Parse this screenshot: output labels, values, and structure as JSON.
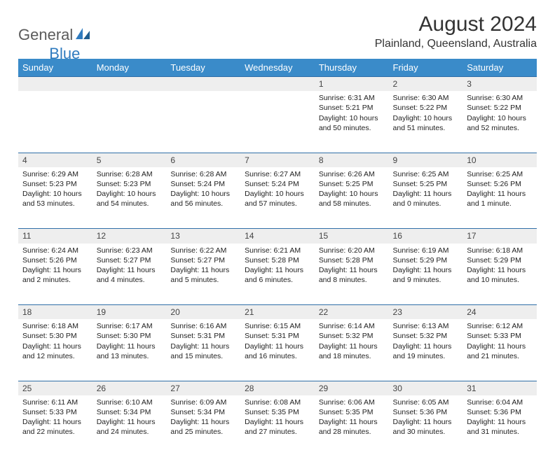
{
  "logo": {
    "part1": "General",
    "part2": "Blue"
  },
  "title": "August 2024",
  "location": "Plainland, Queensland, Australia",
  "colors": {
    "header_bg": "#3a8bc9",
    "header_text": "#ffffff",
    "daynum_bg": "#eeeeee",
    "row_border": "#2f6fa8",
    "logo_gray": "#5b5b5b",
    "logo_blue": "#2f7bbf"
  },
  "weekdays": [
    "Sunday",
    "Monday",
    "Tuesday",
    "Wednesday",
    "Thursday",
    "Friday",
    "Saturday"
  ],
  "weeks": [
    {
      "nums": [
        "",
        "",
        "",
        "",
        "1",
        "2",
        "3"
      ],
      "cells": [
        null,
        null,
        null,
        null,
        {
          "sunrise": "Sunrise: 6:31 AM",
          "sunset": "Sunset: 5:21 PM",
          "day1": "Daylight: 10 hours",
          "day2": "and 50 minutes."
        },
        {
          "sunrise": "Sunrise: 6:30 AM",
          "sunset": "Sunset: 5:22 PM",
          "day1": "Daylight: 10 hours",
          "day2": "and 51 minutes."
        },
        {
          "sunrise": "Sunrise: 6:30 AM",
          "sunset": "Sunset: 5:22 PM",
          "day1": "Daylight: 10 hours",
          "day2": "and 52 minutes."
        }
      ]
    },
    {
      "nums": [
        "4",
        "5",
        "6",
        "7",
        "8",
        "9",
        "10"
      ],
      "cells": [
        {
          "sunrise": "Sunrise: 6:29 AM",
          "sunset": "Sunset: 5:23 PM",
          "day1": "Daylight: 10 hours",
          "day2": "and 53 minutes."
        },
        {
          "sunrise": "Sunrise: 6:28 AM",
          "sunset": "Sunset: 5:23 PM",
          "day1": "Daylight: 10 hours",
          "day2": "and 54 minutes."
        },
        {
          "sunrise": "Sunrise: 6:28 AM",
          "sunset": "Sunset: 5:24 PM",
          "day1": "Daylight: 10 hours",
          "day2": "and 56 minutes."
        },
        {
          "sunrise": "Sunrise: 6:27 AM",
          "sunset": "Sunset: 5:24 PM",
          "day1": "Daylight: 10 hours",
          "day2": "and 57 minutes."
        },
        {
          "sunrise": "Sunrise: 6:26 AM",
          "sunset": "Sunset: 5:25 PM",
          "day1": "Daylight: 10 hours",
          "day2": "and 58 minutes."
        },
        {
          "sunrise": "Sunrise: 6:25 AM",
          "sunset": "Sunset: 5:25 PM",
          "day1": "Daylight: 11 hours",
          "day2": "and 0 minutes."
        },
        {
          "sunrise": "Sunrise: 6:25 AM",
          "sunset": "Sunset: 5:26 PM",
          "day1": "Daylight: 11 hours",
          "day2": "and 1 minute."
        }
      ]
    },
    {
      "nums": [
        "11",
        "12",
        "13",
        "14",
        "15",
        "16",
        "17"
      ],
      "cells": [
        {
          "sunrise": "Sunrise: 6:24 AM",
          "sunset": "Sunset: 5:26 PM",
          "day1": "Daylight: 11 hours",
          "day2": "and 2 minutes."
        },
        {
          "sunrise": "Sunrise: 6:23 AM",
          "sunset": "Sunset: 5:27 PM",
          "day1": "Daylight: 11 hours",
          "day2": "and 4 minutes."
        },
        {
          "sunrise": "Sunrise: 6:22 AM",
          "sunset": "Sunset: 5:27 PM",
          "day1": "Daylight: 11 hours",
          "day2": "and 5 minutes."
        },
        {
          "sunrise": "Sunrise: 6:21 AM",
          "sunset": "Sunset: 5:28 PM",
          "day1": "Daylight: 11 hours",
          "day2": "and 6 minutes."
        },
        {
          "sunrise": "Sunrise: 6:20 AM",
          "sunset": "Sunset: 5:28 PM",
          "day1": "Daylight: 11 hours",
          "day2": "and 8 minutes."
        },
        {
          "sunrise": "Sunrise: 6:19 AM",
          "sunset": "Sunset: 5:29 PM",
          "day1": "Daylight: 11 hours",
          "day2": "and 9 minutes."
        },
        {
          "sunrise": "Sunrise: 6:18 AM",
          "sunset": "Sunset: 5:29 PM",
          "day1": "Daylight: 11 hours",
          "day2": "and 10 minutes."
        }
      ]
    },
    {
      "nums": [
        "18",
        "19",
        "20",
        "21",
        "22",
        "23",
        "24"
      ],
      "cells": [
        {
          "sunrise": "Sunrise: 6:18 AM",
          "sunset": "Sunset: 5:30 PM",
          "day1": "Daylight: 11 hours",
          "day2": "and 12 minutes."
        },
        {
          "sunrise": "Sunrise: 6:17 AM",
          "sunset": "Sunset: 5:30 PM",
          "day1": "Daylight: 11 hours",
          "day2": "and 13 minutes."
        },
        {
          "sunrise": "Sunrise: 6:16 AM",
          "sunset": "Sunset: 5:31 PM",
          "day1": "Daylight: 11 hours",
          "day2": "and 15 minutes."
        },
        {
          "sunrise": "Sunrise: 6:15 AM",
          "sunset": "Sunset: 5:31 PM",
          "day1": "Daylight: 11 hours",
          "day2": "and 16 minutes."
        },
        {
          "sunrise": "Sunrise: 6:14 AM",
          "sunset": "Sunset: 5:32 PM",
          "day1": "Daylight: 11 hours",
          "day2": "and 18 minutes."
        },
        {
          "sunrise": "Sunrise: 6:13 AM",
          "sunset": "Sunset: 5:32 PM",
          "day1": "Daylight: 11 hours",
          "day2": "and 19 minutes."
        },
        {
          "sunrise": "Sunrise: 6:12 AM",
          "sunset": "Sunset: 5:33 PM",
          "day1": "Daylight: 11 hours",
          "day2": "and 21 minutes."
        }
      ]
    },
    {
      "nums": [
        "25",
        "26",
        "27",
        "28",
        "29",
        "30",
        "31"
      ],
      "cells": [
        {
          "sunrise": "Sunrise: 6:11 AM",
          "sunset": "Sunset: 5:33 PM",
          "day1": "Daylight: 11 hours",
          "day2": "and 22 minutes."
        },
        {
          "sunrise": "Sunrise: 6:10 AM",
          "sunset": "Sunset: 5:34 PM",
          "day1": "Daylight: 11 hours",
          "day2": "and 24 minutes."
        },
        {
          "sunrise": "Sunrise: 6:09 AM",
          "sunset": "Sunset: 5:34 PM",
          "day1": "Daylight: 11 hours",
          "day2": "and 25 minutes."
        },
        {
          "sunrise": "Sunrise: 6:08 AM",
          "sunset": "Sunset: 5:35 PM",
          "day1": "Daylight: 11 hours",
          "day2": "and 27 minutes."
        },
        {
          "sunrise": "Sunrise: 6:06 AM",
          "sunset": "Sunset: 5:35 PM",
          "day1": "Daylight: 11 hours",
          "day2": "and 28 minutes."
        },
        {
          "sunrise": "Sunrise: 6:05 AM",
          "sunset": "Sunset: 5:36 PM",
          "day1": "Daylight: 11 hours",
          "day2": "and 30 minutes."
        },
        {
          "sunrise": "Sunrise: 6:04 AM",
          "sunset": "Sunset: 5:36 PM",
          "day1": "Daylight: 11 hours",
          "day2": "and 31 minutes."
        }
      ]
    }
  ]
}
